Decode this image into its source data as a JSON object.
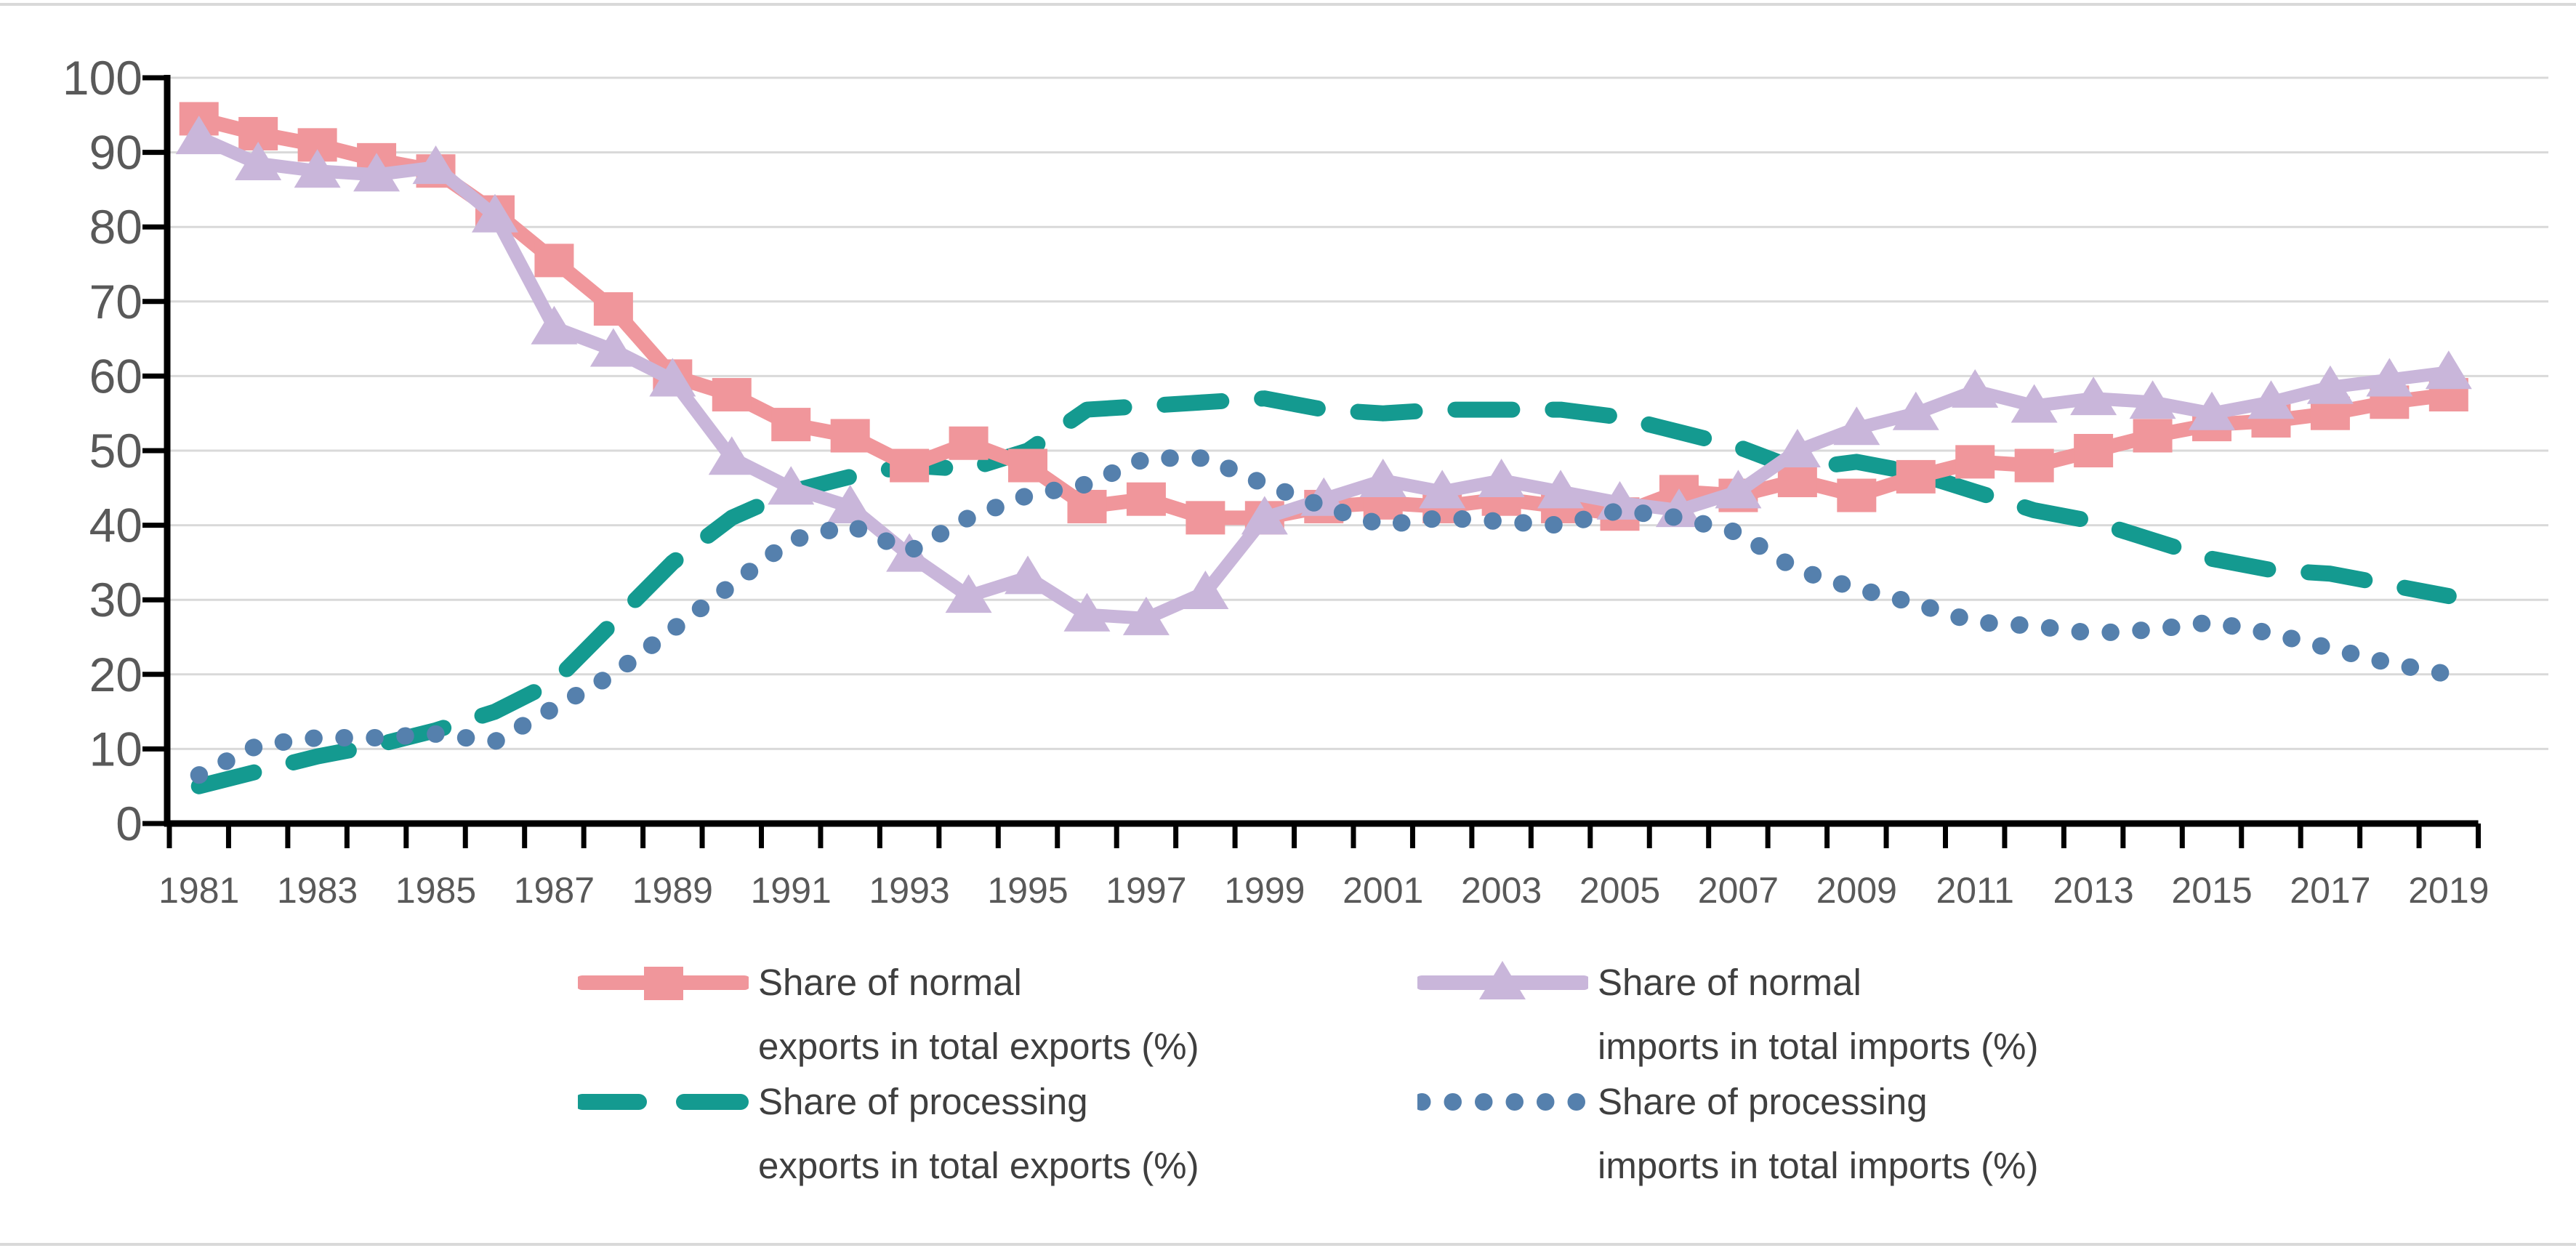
{
  "chart_data": {
    "type": "line",
    "title": "",
    "xlabel": "",
    "ylabel": "",
    "ylim": [
      0,
      100
    ],
    "y_ticks": [
      0,
      10,
      20,
      30,
      40,
      50,
      60,
      70,
      80,
      90,
      100
    ],
    "x": [
      1981,
      1982,
      1983,
      1984,
      1985,
      1986,
      1987,
      1988,
      1989,
      1990,
      1991,
      1992,
      1993,
      1994,
      1995,
      1996,
      1997,
      1998,
      1999,
      2000,
      2001,
      2002,
      2003,
      2004,
      2005,
      2006,
      2007,
      2008,
      2009,
      2010,
      2011,
      2012,
      2013,
      2014,
      2015,
      2016,
      2017,
      2018,
      2019
    ],
    "x_tick_labels": [
      "1981",
      "1983",
      "1985",
      "1987",
      "1989",
      "1991",
      "1993",
      "1995",
      "1997",
      "1999",
      "2001",
      "2003",
      "2005",
      "2007",
      "2009",
      "2011",
      "2013",
      "2015",
      "2017",
      "2019"
    ],
    "grid": "horizontal",
    "legend_position": "bottom",
    "colors": {
      "grid": "#d9d9d9",
      "axis": "#000000",
      "tick_text": "#595959",
      "legend_text": "#3f3f3f",
      "background": "#ffffff"
    },
    "series": [
      {
        "name": "normal-exports",
        "legend_line1": "Share of normal",
        "legend_line2": "exports in total exports (%)",
        "color": "#f0969b",
        "line_style": "solid",
        "marker": "square",
        "values": [
          94.5,
          92.5,
          91,
          89,
          87.5,
          82,
          75.5,
          69,
          60,
          57.5,
          53.5,
          52,
          48,
          51,
          48,
          42.5,
          43.5,
          41,
          41,
          42.5,
          43,
          42.5,
          43.5,
          42.5,
          41.5,
          44.5,
          44,
          46,
          44,
          46.5,
          48.5,
          48,
          50,
          52,
          53.5,
          54,
          55,
          56.5,
          57.5
        ]
      },
      {
        "name": "normal-imports",
        "legend_line1": "Share of normal",
        "legend_line2": "imports in total imports (%)",
        "color": "#c9b6da",
        "line_style": "solid",
        "marker": "triangle",
        "values": [
          92,
          88.5,
          87.5,
          87,
          88,
          81.5,
          66.5,
          63.5,
          59.5,
          49,
          45,
          42.5,
          36,
          30.5,
          33,
          28,
          27.5,
          31,
          41,
          43.5,
          46,
          44.5,
          46,
          44.5,
          43,
          42,
          44.5,
          50,
          53,
          55,
          58,
          56,
          57,
          56.5,
          55,
          56.5,
          58.5,
          59.5,
          60.5
        ]
      },
      {
        "name": "processing-exports",
        "legend_line1": "Share of processing",
        "legend_line2": "exports in total exports (%)",
        "color": "#149a90",
        "line_style": "dashed",
        "marker": "none",
        "values": [
          5,
          7,
          9,
          10.5,
          12.5,
          15,
          19,
          27,
          35,
          41,
          44.5,
          46.5,
          48,
          47.5,
          50,
          55.5,
          56,
          56.5,
          57,
          55.5,
          55,
          55.5,
          55.5,
          55.5,
          54.5,
          52.5,
          50.5,
          47.5,
          48.5,
          47,
          44.5,
          42,
          40.5,
          38,
          35.5,
          34,
          33.5,
          32,
          30.5
        ]
      },
      {
        "name": "processing-imports",
        "legend_line1": "Share of processing",
        "legend_line2": "imports in total imports (%)",
        "color": "#5580ad",
        "line_style": "dotted",
        "marker": "none",
        "values": [
          6.5,
          10.5,
          11.5,
          11.5,
          12,
          11,
          15.5,
          20,
          26,
          32,
          38,
          40,
          36.5,
          41,
          44,
          45.5,
          49,
          49,
          45.5,
          42.5,
          40,
          41,
          40.5,
          40,
          42,
          41,
          39,
          34,
          31.5,
          29.5,
          27,
          26.5,
          25.5,
          26,
          27,
          25.5,
          23.5,
          21.5,
          20
        ]
      }
    ]
  }
}
